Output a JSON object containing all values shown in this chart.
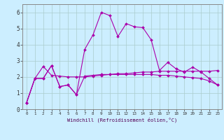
{
  "xlabel": "Windchill (Refroidissement éolien,°C)",
  "bg_color": "#cceeff",
  "grid_color": "#aacccc",
  "line_color": "#aa00aa",
  "x_values": [
    0,
    1,
    2,
    3,
    4,
    5,
    6,
    7,
    8,
    9,
    10,
    11,
    12,
    13,
    14,
    15,
    16,
    17,
    18,
    19,
    20,
    21,
    22,
    23
  ],
  "series1": [
    0.4,
    1.9,
    1.9,
    2.7,
    1.4,
    1.5,
    0.9,
    3.7,
    4.6,
    6.0,
    5.8,
    4.5,
    5.3,
    5.1,
    5.05,
    4.3,
    2.4,
    2.9,
    2.5,
    2.3,
    2.6,
    2.3,
    1.9,
    1.5
  ],
  "series2": [
    0.4,
    1.9,
    1.9,
    2.7,
    1.4,
    1.5,
    0.9,
    2.05,
    2.1,
    2.15,
    2.15,
    2.15,
    2.15,
    2.15,
    2.15,
    2.15,
    2.1,
    2.1,
    2.05,
    2.0,
    1.95,
    1.9,
    1.75,
    1.5
  ],
  "series3": [
    0.4,
    1.9,
    2.65,
    2.1,
    2.05,
    2.0,
    2.0,
    2.0,
    2.05,
    2.1,
    2.15,
    2.2,
    2.2,
    2.25,
    2.3,
    2.3,
    2.35,
    2.35,
    2.35,
    2.35,
    2.35,
    2.35,
    2.35,
    2.4
  ],
  "ylim": [
    0,
    6.5
  ],
  "xlim": [
    -0.5,
    23.5
  ],
  "yticks": [
    0,
    1,
    2,
    3,
    4,
    5,
    6
  ]
}
